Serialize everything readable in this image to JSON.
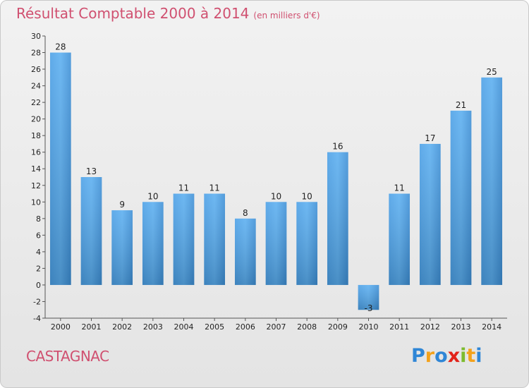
{
  "title": "Résultat Comptable 2000 à 2014",
  "subtitle": "(en milliers d'€)",
  "commune": "CASTAGNAC",
  "logo": {
    "letters": [
      "P",
      "r",
      "o",
      "x",
      "i",
      "t",
      "i"
    ],
    "colors": [
      "#2f86d6",
      "#f3a21c",
      "#2f86d6",
      "#e2231a",
      "#7dbb2f",
      "#f3a21c",
      "#2f86d6"
    ]
  },
  "chart_data": {
    "type": "bar",
    "categories": [
      "2000",
      "2001",
      "2002",
      "2003",
      "2004",
      "2005",
      "2006",
      "2007",
      "2008",
      "2009",
      "2010",
      "2011",
      "2012",
      "2013",
      "2014"
    ],
    "values": [
      28,
      13,
      9,
      10,
      11,
      11,
      8,
      10,
      10,
      16,
      -3,
      11,
      17,
      21,
      25
    ],
    "ylim": [
      -4,
      30
    ],
    "yticks": [
      -4,
      -2,
      0,
      2,
      4,
      6,
      8,
      10,
      12,
      14,
      16,
      18,
      20,
      22,
      24,
      26,
      28,
      30
    ],
    "grid": false,
    "bar_color": "#3d8fd6"
  }
}
